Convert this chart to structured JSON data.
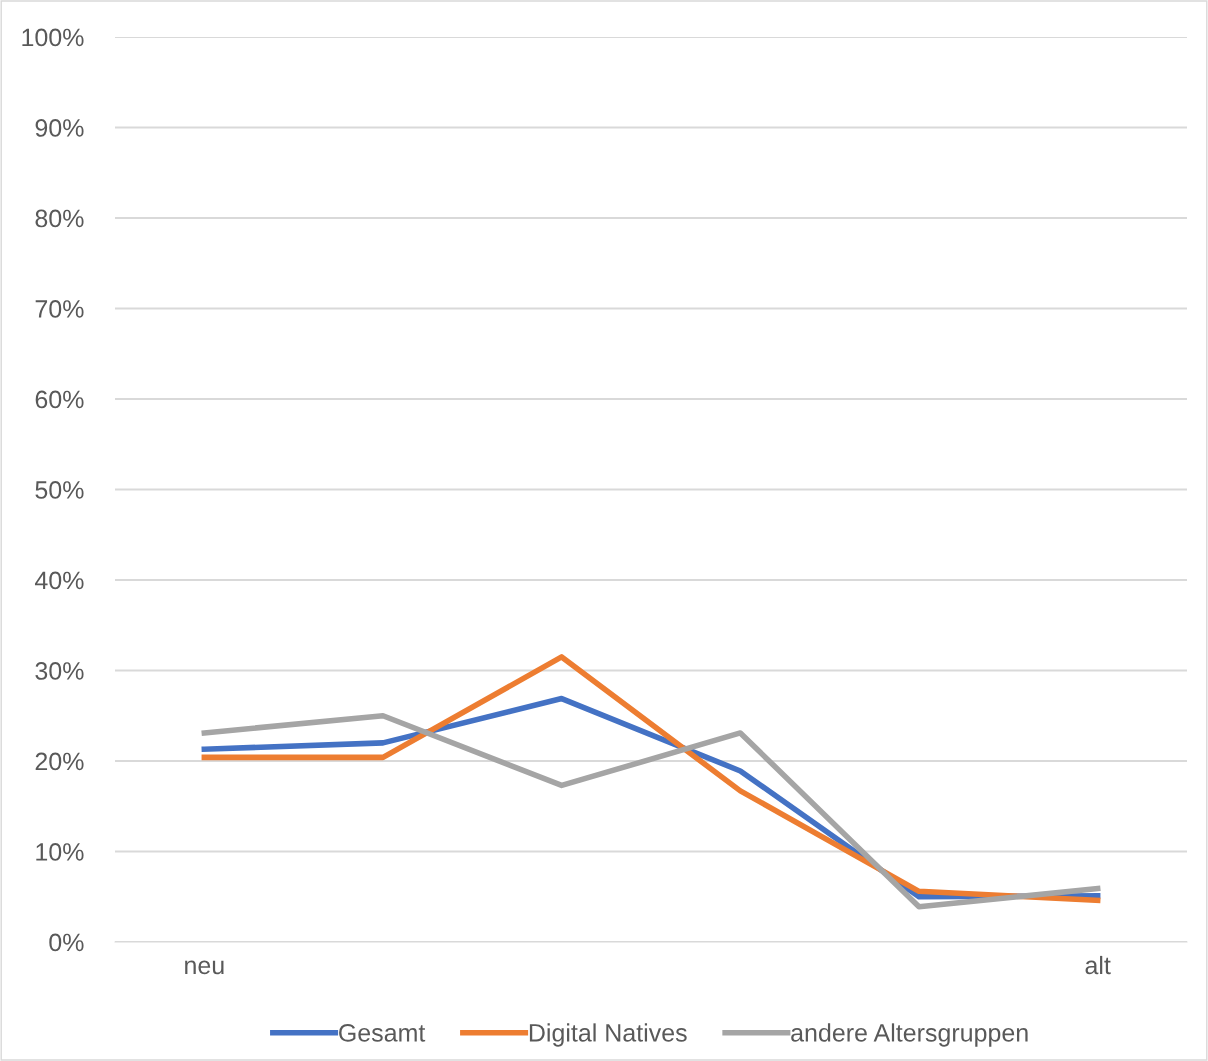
{
  "chart_data": {
    "type": "line",
    "categories": [
      "neu",
      null,
      null,
      null,
      null,
      "alt"
    ],
    "series": [
      {
        "name": "Gesamt",
        "color": "#4472c4",
        "values": [
          21.3,
          22.0,
          26.9,
          18.9,
          5.0,
          5.1
        ]
      },
      {
        "name": "Digital Natives",
        "color": "#ed7d31",
        "values": [
          20.4,
          20.4,
          31.5,
          16.7,
          5.6,
          4.6
        ]
      },
      {
        "name": "andere Altersgruppen",
        "color": "#a5a5a5",
        "values": [
          23.1,
          25.0,
          17.3,
          23.1,
          3.9,
          5.9
        ]
      }
    ],
    "ylim": [
      0,
      100
    ],
    "yticks": [
      {
        "value": 0,
        "label": "0%"
      },
      {
        "value": 10,
        "label": "10%"
      },
      {
        "value": 20,
        "label": "20%"
      },
      {
        "value": 30,
        "label": "30%"
      },
      {
        "value": 40,
        "label": "40%"
      },
      {
        "value": 50,
        "label": "50%"
      },
      {
        "value": 60,
        "label": "60%"
      },
      {
        "value": 70,
        "label": "70%"
      },
      {
        "value": 80,
        "label": "80%"
      },
      {
        "value": 90,
        "label": "90%"
      },
      {
        "value": 100,
        "label": "100%"
      }
    ],
    "grid": "y",
    "legend": "bottom",
    "marker": "none",
    "line_style": "solid"
  }
}
